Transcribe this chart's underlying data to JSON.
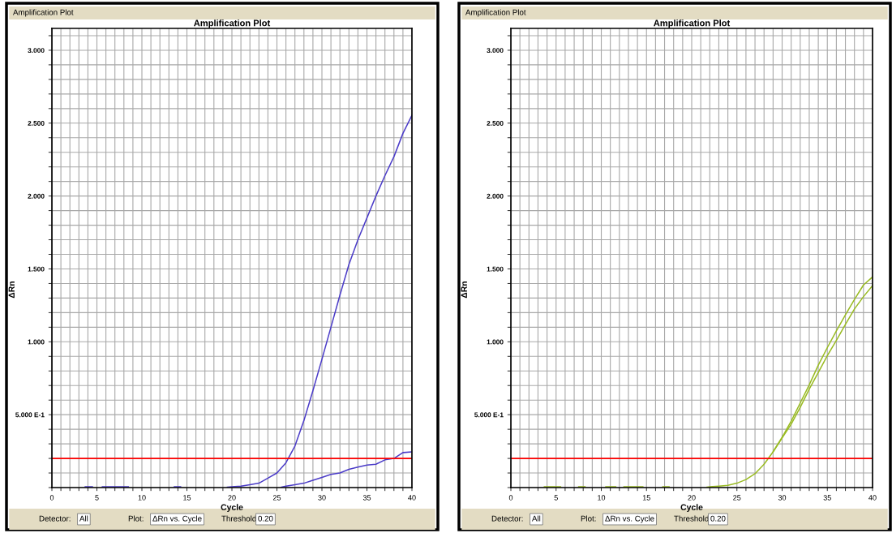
{
  "chart_data": [
    {
      "type": "line",
      "title": "Amplification Plot",
      "xlabel": "Cycle",
      "ylabel": "ΔRn",
      "xlim": [
        0,
        40
      ],
      "ylim": [
        0,
        3.15
      ],
      "grid": true,
      "marker": "none",
      "line_style": "solid",
      "xticks": [
        0,
        {
          "value": 1,
          "label": null
        },
        {
          "value": 2,
          "label": null
        },
        {
          "value": 3,
          "label": null
        },
        {
          "value": 4,
          "label": null
        },
        5,
        {
          "value": 6,
          "label": null
        },
        {
          "value": 7,
          "label": null
        },
        {
          "value": 8,
          "label": null
        },
        {
          "value": 9,
          "label": null
        },
        10,
        {
          "value": 11,
          "label": null
        },
        {
          "value": 12,
          "label": null
        },
        {
          "value": 13,
          "label": null
        },
        {
          "value": 14,
          "label": null
        },
        15,
        {
          "value": 16,
          "label": null
        },
        {
          "value": 17,
          "label": null
        },
        {
          "value": 18,
          "label": null
        },
        {
          "value": 19,
          "label": null
        },
        20,
        {
          "value": 21,
          "label": null
        },
        {
          "value": 22,
          "label": null
        },
        {
          "value": 23,
          "label": null
        },
        {
          "value": 24,
          "label": null
        },
        25,
        {
          "value": 26,
          "label": null
        },
        {
          "value": 27,
          "label": null
        },
        {
          "value": 28,
          "label": null
        },
        {
          "value": 29,
          "label": null
        },
        30,
        {
          "value": 31,
          "label": null
        },
        {
          "value": 32,
          "label": null
        },
        {
          "value": 33,
          "label": null
        },
        {
          "value": 34,
          "label": null
        },
        35,
        {
          "value": 36,
          "label": null
        },
        {
          "value": 37,
          "label": null
        },
        {
          "value": 38,
          "label": null
        },
        {
          "value": 39,
          "label": null
        },
        40
      ],
      "yticks": [
        {
          "value": 0,
          "label": null
        },
        {
          "value": 0.1,
          "label": null
        },
        {
          "value": 0.2,
          "label": null
        },
        {
          "value": 0.3,
          "label": null
        },
        {
          "value": 0.4,
          "label": null
        },
        {
          "value": 0.5,
          "label": "5.000 E-1"
        },
        {
          "value": 0.6,
          "label": null
        },
        {
          "value": 0.7,
          "label": null
        },
        {
          "value": 0.8,
          "label": null
        },
        {
          "value": 0.9,
          "label": null
        },
        {
          "value": 1.0,
          "label": "1.000"
        },
        {
          "value": 1.1,
          "label": null
        },
        {
          "value": 1.2,
          "label": null
        },
        {
          "value": 1.3,
          "label": null
        },
        {
          "value": 1.4,
          "label": null
        },
        {
          "value": 1.5,
          "label": "1.500"
        },
        {
          "value": 1.6,
          "label": null
        },
        {
          "value": 1.7,
          "label": null
        },
        {
          "value": 1.8,
          "label": null
        },
        {
          "value": 1.9,
          "label": null
        },
        {
          "value": 2.0,
          "label": "2.000"
        },
        {
          "value": 2.1,
          "label": null
        },
        {
          "value": 2.2,
          "label": null
        },
        {
          "value": 2.3,
          "label": null
        },
        {
          "value": 2.4,
          "label": null
        },
        {
          "value": 2.5,
          "label": "2.500"
        },
        {
          "value": 2.6,
          "label": null
        },
        {
          "value": 2.7,
          "label": null
        },
        {
          "value": 2.8,
          "label": null
        },
        {
          "value": 2.9,
          "label": null
        },
        {
          "value": 3.0,
          "label": "3.000"
        },
        {
          "value": 3.1,
          "label": null
        }
      ],
      "ref_lines": [
        {
          "axis": "y",
          "value": 0.2,
          "color": "#ff0000"
        }
      ],
      "annotations": [
        "Amplification Plot",
        "Detector:",
        "All",
        "Plot:",
        "ΔRn vs. Cycle",
        "Threshold:",
        "0.20"
      ],
      "series": [
        {
          "color": "#4b3cc8",
          "x": [
            3.7,
            4.5,
            5,
            5.6,
            8.5,
            9,
            13.6,
            14.3,
            15,
            19.5,
            20,
            21,
            22,
            23,
            24,
            25,
            26,
            27,
            28,
            29,
            30,
            31,
            32,
            33,
            34,
            35,
            36,
            37,
            38,
            39,
            40
          ],
          "values": [
            0.005,
            0.005,
            null,
            0.005,
            0.005,
            null,
            0.005,
            0.005,
            null,
            0.003,
            0.005,
            0.01,
            0.02,
            0.03,
            0.065,
            0.1,
            0.17,
            0.285,
            0.46,
            0.665,
            0.88,
            1.1,
            1.32,
            1.53,
            1.7,
            1.85,
            2.0,
            2.14,
            2.27,
            2.43,
            2.555
          ]
        },
        {
          "color": "#4b3cc8",
          "x": [
            25.5,
            26,
            27,
            28,
            29,
            30,
            31,
            32,
            33,
            34,
            35,
            36,
            37,
            38,
            39,
            40
          ],
          "values": [
            0.003,
            0.01,
            0.02,
            0.03,
            0.05,
            0.07,
            0.09,
            0.1,
            0.125,
            0.14,
            0.155,
            0.16,
            0.19,
            0.2,
            0.24,
            0.245
          ]
        }
      ]
    },
    {
      "type": "line",
      "title": "Amplification Plot",
      "xlabel": "Cycle",
      "ylabel": "ΔRn",
      "xlim": [
        0,
        40
      ],
      "ylim": [
        0,
        3.15
      ],
      "grid": true,
      "marker": "none",
      "line_style": "solid",
      "xticks": [
        0,
        {
          "value": 1,
          "label": null
        },
        {
          "value": 2,
          "label": null
        },
        {
          "value": 3,
          "label": null
        },
        {
          "value": 4,
          "label": null
        },
        5,
        {
          "value": 6,
          "label": null
        },
        {
          "value": 7,
          "label": null
        },
        {
          "value": 8,
          "label": null
        },
        {
          "value": 9,
          "label": null
        },
        10,
        {
          "value": 11,
          "label": null
        },
        {
          "value": 12,
          "label": null
        },
        {
          "value": 13,
          "label": null
        },
        {
          "value": 14,
          "label": null
        },
        15,
        {
          "value": 16,
          "label": null
        },
        {
          "value": 17,
          "label": null
        },
        {
          "value": 18,
          "label": null
        },
        {
          "value": 19,
          "label": null
        },
        20,
        {
          "value": 21,
          "label": null
        },
        {
          "value": 22,
          "label": null
        },
        {
          "value": 23,
          "label": null
        },
        {
          "value": 24,
          "label": null
        },
        25,
        {
          "value": 26,
          "label": null
        },
        {
          "value": 27,
          "label": null
        },
        {
          "value": 28,
          "label": null
        },
        {
          "value": 29,
          "label": null
        },
        30,
        {
          "value": 31,
          "label": null
        },
        {
          "value": 32,
          "label": null
        },
        {
          "value": 33,
          "label": null
        },
        {
          "value": 34,
          "label": null
        },
        35,
        {
          "value": 36,
          "label": null
        },
        {
          "value": 37,
          "label": null
        },
        {
          "value": 38,
          "label": null
        },
        {
          "value": 39,
          "label": null
        },
        40
      ],
      "yticks": [
        {
          "value": 0,
          "label": null
        },
        {
          "value": 0.1,
          "label": null
        },
        {
          "value": 0.2,
          "label": null
        },
        {
          "value": 0.3,
          "label": null
        },
        {
          "value": 0.4,
          "label": null
        },
        {
          "value": 0.5,
          "label": "5.000 E-1"
        },
        {
          "value": 0.6,
          "label": null
        },
        {
          "value": 0.7,
          "label": null
        },
        {
          "value": 0.8,
          "label": null
        },
        {
          "value": 0.9,
          "label": null
        },
        {
          "value": 1.0,
          "label": "1.000"
        },
        {
          "value": 1.1,
          "label": null
        },
        {
          "value": 1.2,
          "label": null
        },
        {
          "value": 1.3,
          "label": null
        },
        {
          "value": 1.4,
          "label": null
        },
        {
          "value": 1.5,
          "label": "1.500"
        },
        {
          "value": 1.6,
          "label": null
        },
        {
          "value": 1.7,
          "label": null
        },
        {
          "value": 1.8,
          "label": null
        },
        {
          "value": 1.9,
          "label": null
        },
        {
          "value": 2.0,
          "label": "2.000"
        },
        {
          "value": 2.1,
          "label": null
        },
        {
          "value": 2.2,
          "label": null
        },
        {
          "value": 2.3,
          "label": null
        },
        {
          "value": 2.4,
          "label": null
        },
        {
          "value": 2.5,
          "label": "2.500"
        },
        {
          "value": 2.6,
          "label": null
        },
        {
          "value": 2.7,
          "label": null
        },
        {
          "value": 2.8,
          "label": null
        },
        {
          "value": 2.9,
          "label": null
        },
        {
          "value": 3.0,
          "label": "3.000"
        },
        {
          "value": 3.1,
          "label": null
        }
      ],
      "ref_lines": [
        {
          "axis": "y",
          "value": 0.2,
          "color": "#ff0000"
        }
      ],
      "annotations": [
        "Amplification Plot",
        "Detector:",
        "All",
        "Plot:",
        "ΔRn vs. Cycle",
        "Threshold:",
        "0.20"
      ],
      "series": [
        {
          "color": "#99bb22",
          "x": [
            3.7,
            5.5,
            6,
            7.5,
            8.2,
            9,
            10.5,
            11.6,
            12,
            12.5,
            14.6,
            15,
            16.8,
            17.5,
            18,
            21.7,
            22,
            23,
            24,
            25,
            26,
            27,
            28,
            29,
            30,
            31,
            32,
            33,
            34,
            35,
            36,
            37,
            38,
            39,
            40
          ],
          "values": [
            0.005,
            0.005,
            null,
            0.005,
            0.005,
            null,
            0.005,
            0.005,
            null,
            0.005,
            0.005,
            null,
            0.005,
            0.005,
            null,
            0.003,
            0.005,
            0.01,
            0.015,
            0.03,
            0.055,
            0.095,
            0.16,
            0.245,
            0.345,
            0.455,
            0.58,
            0.705,
            0.84,
            0.96,
            1.075,
            1.185,
            1.29,
            1.39,
            1.445
          ]
        },
        {
          "color": "#99bb22",
          "x": [
            29,
            30,
            31,
            32,
            33,
            34,
            35,
            36,
            37,
            38,
            39,
            40
          ],
          "values": [
            0.245,
            0.34,
            0.435,
            0.55,
            0.675,
            0.79,
            0.905,
            1.01,
            1.12,
            1.225,
            1.31,
            1.385
          ]
        }
      ]
    }
  ]
}
